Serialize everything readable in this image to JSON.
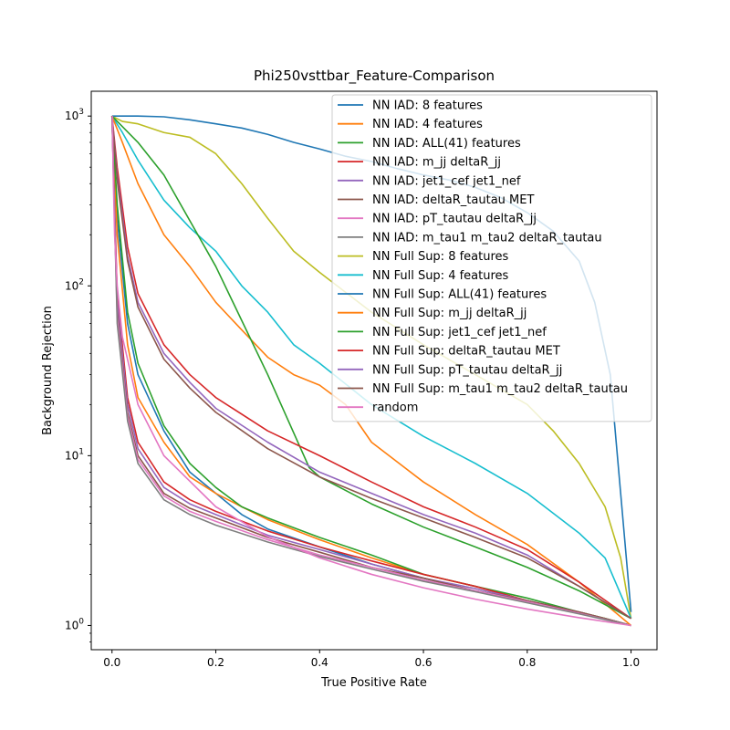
{
  "chart_data": {
    "type": "line",
    "title": "Phi250vsttbar_Feature-Comparison",
    "xlabel": "True Positive Rate",
    "ylabel": "Background Rejection",
    "xlim": [
      -0.04,
      1.05
    ],
    "ylim": [
      0.72,
      1400
    ],
    "yscale": "log",
    "grid": false,
    "legend_position": "top-right",
    "x_ticks": [
      {
        "value": 0.0,
        "label": "0.0"
      },
      {
        "value": 0.2,
        "label": "0.2"
      },
      {
        "value": 0.4,
        "label": "0.4"
      },
      {
        "value": 0.6,
        "label": "0.6"
      },
      {
        "value": 0.8,
        "label": "0.8"
      },
      {
        "value": 1.0,
        "label": "1.0"
      }
    ],
    "y_ticks": [
      {
        "value": 1,
        "base": "10",
        "exp": "0"
      },
      {
        "value": 10,
        "base": "10",
        "exp": "1"
      },
      {
        "value": 100,
        "base": "10",
        "exp": "2"
      },
      {
        "value": 1000,
        "base": "10",
        "exp": "3"
      }
    ],
    "series": [
      {
        "name": "NN IAD: 8 features",
        "color": "#1f77b4",
        "x": [
          0,
          0.01,
          0.03,
          0.05,
          0.1,
          0.15,
          0.2,
          0.25,
          0.3,
          0.4,
          0.5,
          0.6,
          0.7,
          0.8,
          0.9,
          0.95,
          1.0
        ],
        "y": [
          1000,
          250,
          60,
          30,
          14,
          8,
          6,
          4.5,
          3.7,
          2.9,
          2.3,
          1.9,
          1.6,
          1.4,
          1.2,
          1.1,
          1.0
        ]
      },
      {
        "name": "NN IAD: 4 features",
        "color": "#ff7f0e",
        "x": [
          0,
          0.01,
          0.03,
          0.05,
          0.1,
          0.15,
          0.2,
          0.25,
          0.3,
          0.4,
          0.5,
          0.6,
          0.7,
          0.8,
          0.9,
          0.95,
          1.0
        ],
        "y": [
          1000,
          200,
          45,
          22,
          12,
          7.5,
          6,
          5,
          4.2,
          3.2,
          2.5,
          2.0,
          1.7,
          1.4,
          1.2,
          1.1,
          1.0
        ]
      },
      {
        "name": "NN IAD: ALL(41) features",
        "color": "#2ca02c",
        "x": [
          0,
          0.01,
          0.03,
          0.05,
          0.1,
          0.15,
          0.2,
          0.25,
          0.3,
          0.4,
          0.5,
          0.6,
          0.7,
          0.8,
          0.9,
          0.95,
          1.0
        ],
        "y": [
          1000,
          300,
          70,
          35,
          15,
          9,
          6.5,
          5,
          4.3,
          3.3,
          2.6,
          2.0,
          1.7,
          1.45,
          1.2,
          1.1,
          1.0
        ]
      },
      {
        "name": "NN IAD: m_jj deltaR_jj",
        "color": "#d62728",
        "x": [
          0,
          0.01,
          0.03,
          0.05,
          0.1,
          0.15,
          0.2,
          0.3,
          0.4,
          0.5,
          0.6,
          0.7,
          0.8,
          0.9,
          1.0
        ],
        "y": [
          1000,
          90,
          22,
          12,
          7,
          5.5,
          4.7,
          3.6,
          2.9,
          2.4,
          2.0,
          1.7,
          1.4,
          1.2,
          1.0
        ]
      },
      {
        "name": "NN IAD: jet1_cef jet1_nef",
        "color": "#9467bd",
        "x": [
          0,
          0.01,
          0.03,
          0.05,
          0.1,
          0.15,
          0.2,
          0.3,
          0.4,
          0.5,
          0.6,
          0.7,
          0.8,
          0.9,
          1.0
        ],
        "y": [
          1000,
          80,
          20,
          11,
          6.5,
          5.2,
          4.5,
          3.4,
          2.8,
          2.3,
          1.9,
          1.65,
          1.4,
          1.2,
          1.0
        ]
      },
      {
        "name": "NN IAD: deltaR_tautau MET",
        "color": "#8c564b",
        "x": [
          0,
          0.01,
          0.03,
          0.05,
          0.1,
          0.15,
          0.2,
          0.3,
          0.4,
          0.5,
          0.6,
          0.7,
          0.8,
          0.9,
          1.0
        ],
        "y": [
          1000,
          70,
          18,
          10,
          6,
          4.9,
          4.3,
          3.3,
          2.7,
          2.2,
          1.9,
          1.6,
          1.4,
          1.2,
          1.0
        ]
      },
      {
        "name": "NN IAD: pT_tautau deltaR_jj",
        "color": "#e377c2",
        "x": [
          0,
          0.01,
          0.03,
          0.05,
          0.1,
          0.15,
          0.2,
          0.3,
          0.4,
          0.5,
          0.6,
          0.7,
          0.8,
          0.9,
          1.0
        ],
        "y": [
          1000,
          65,
          17,
          9.5,
          5.8,
          4.7,
          4.1,
          3.2,
          2.6,
          2.2,
          1.85,
          1.6,
          1.38,
          1.18,
          1.0
        ]
      },
      {
        "name": "NN IAD: m_tau1 m_tau2 deltaR_tautau",
        "color": "#7f7f7f",
        "x": [
          0,
          0.01,
          0.03,
          0.05,
          0.1,
          0.15,
          0.2,
          0.3,
          0.4,
          0.5,
          0.6,
          0.7,
          0.8,
          0.9,
          1.0
        ],
        "y": [
          1000,
          60,
          16,
          9,
          5.5,
          4.5,
          3.9,
          3.1,
          2.55,
          2.15,
          1.82,
          1.58,
          1.36,
          1.17,
          1.0
        ]
      },
      {
        "name": "NN Full Sup: 8 features",
        "color": "#bcbd22",
        "x": [
          0,
          0.02,
          0.05,
          0.1,
          0.15,
          0.2,
          0.25,
          0.3,
          0.35,
          0.4,
          0.5,
          0.6,
          0.7,
          0.8,
          0.85,
          0.9,
          0.95,
          0.98,
          1.0
        ],
        "y": [
          1000,
          930,
          900,
          800,
          750,
          600,
          400,
          250,
          160,
          120,
          70,
          45,
          30,
          20,
          14,
          9,
          5,
          2.5,
          1.1
        ]
      },
      {
        "name": "NN Full Sup: 4 features",
        "color": "#17becf",
        "x": [
          0,
          0.02,
          0.05,
          0.1,
          0.15,
          0.2,
          0.25,
          0.3,
          0.35,
          0.4,
          0.5,
          0.6,
          0.7,
          0.8,
          0.9,
          0.95,
          1.0
        ],
        "y": [
          1000,
          800,
          550,
          320,
          220,
          160,
          100,
          70,
          45,
          35,
          20,
          13,
          9,
          6,
          3.5,
          2.5,
          1.1
        ]
      },
      {
        "name": "NN Full Sup: ALL(41) features",
        "color": "#1f77b4",
        "x": [
          0,
          0.05,
          0.1,
          0.15,
          0.2,
          0.25,
          0.3,
          0.35,
          0.4,
          0.45,
          0.5,
          0.55,
          0.6,
          0.65,
          0.7,
          0.75,
          0.8,
          0.85,
          0.9,
          0.93,
          0.96,
          0.98,
          1.0
        ],
        "y": [
          1000,
          1000,
          990,
          950,
          900,
          850,
          780,
          700,
          640,
          580,
          540,
          490,
          450,
          420,
          380,
          330,
          270,
          210,
          140,
          80,
          30,
          6,
          1.2
        ]
      },
      {
        "name": "NN Full Sup: m_jj deltaR_jj",
        "color": "#ff7f0e",
        "x": [
          0,
          0.02,
          0.05,
          0.1,
          0.15,
          0.2,
          0.25,
          0.3,
          0.35,
          0.4,
          0.45,
          0.5,
          0.6,
          0.7,
          0.8,
          0.9,
          1.0
        ],
        "y": [
          1000,
          700,
          400,
          200,
          130,
          80,
          55,
          38,
          30,
          26,
          20,
          12,
          7,
          4.5,
          3,
          1.8,
          1.0
        ]
      },
      {
        "name": "NN Full Sup: jet1_cef jet1_nef",
        "color": "#2ca02c",
        "x": [
          0,
          0.05,
          0.1,
          0.2,
          0.3,
          0.38,
          0.4,
          0.5,
          0.6,
          0.7,
          0.8,
          0.9,
          1.0
        ],
        "y": [
          1000,
          700,
          450,
          130,
          30,
          8.5,
          7.5,
          5.2,
          3.8,
          2.9,
          2.2,
          1.6,
          1.1
        ]
      },
      {
        "name": "NN Full Sup: deltaR_tautau MET",
        "color": "#d62728",
        "x": [
          0,
          0.01,
          0.03,
          0.05,
          0.1,
          0.15,
          0.2,
          0.3,
          0.4,
          0.5,
          0.6,
          0.7,
          0.8,
          0.9,
          1.0
        ],
        "y": [
          1000,
          500,
          170,
          90,
          45,
          30,
          22,
          14,
          10,
          7,
          5,
          3.8,
          2.8,
          1.8,
          1.1
        ]
      },
      {
        "name": "NN Full Sup: pT_tautau deltaR_jj",
        "color": "#9467bd",
        "x": [
          0,
          0.01,
          0.03,
          0.05,
          0.1,
          0.15,
          0.2,
          0.3,
          0.4,
          0.5,
          0.6,
          0.7,
          0.8,
          0.9,
          1.0
        ],
        "y": [
          1000,
          450,
          150,
          80,
          40,
          27,
          19,
          12,
          8,
          6,
          4.5,
          3.5,
          2.6,
          1.7,
          1.1
        ]
      },
      {
        "name": "NN Full Sup: m_tau1 m_tau2 deltaR_tautau",
        "color": "#8c564b",
        "x": [
          0,
          0.01,
          0.03,
          0.05,
          0.1,
          0.15,
          0.2,
          0.3,
          0.4,
          0.5,
          0.6,
          0.7,
          0.8,
          0.9,
          1.0
        ],
        "y": [
          1000,
          420,
          140,
          75,
          37,
          25,
          18,
          11,
          7.5,
          5.6,
          4.3,
          3.3,
          2.5,
          1.7,
          1.1
        ]
      },
      {
        "name": "random",
        "color": "#e377c2",
        "x": [
          0.001,
          0.002,
          0.005,
          0.01,
          0.02,
          0.05,
          0.1,
          0.2,
          0.3,
          0.4,
          0.5,
          0.6,
          0.7,
          0.8,
          0.9,
          1.0
        ],
        "y": [
          1000,
          500,
          200,
          100,
          50,
          20,
          10,
          5,
          3.33,
          2.5,
          2,
          1.667,
          1.429,
          1.25,
          1.111,
          1.0
        ]
      }
    ]
  }
}
